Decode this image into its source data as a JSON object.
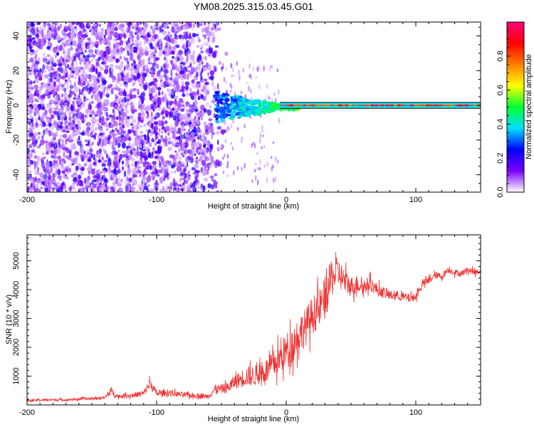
{
  "title": "YM08.2025.315.03.45.G01",
  "colors": {
    "snr_line": "#f03030",
    "frame": "#000000",
    "background": "#ffffff"
  },
  "chart_data": [
    {
      "type": "heatmap",
      "name": "spectrogram",
      "xlabel": "Height of straight line (km)",
      "ylabel": "Frequency (Hz)",
      "xlim": [
        -200,
        150
      ],
      "ylim": [
        -50,
        48
      ],
      "xticks": [
        -200,
        -100,
        0,
        100
      ],
      "xtick_labels": [
        "-200",
        "-100",
        "0",
        "100"
      ],
      "yticks": [
        -40,
        -20,
        0,
        20,
        40
      ],
      "ytick_labels": [
        "-40",
        "-20",
        "0",
        "20",
        "40"
      ],
      "features": {
        "noise_region_x": [
          -200,
          -45
        ],
        "convergence_x": [
          -55,
          0
        ],
        "carrier_frequency_hz": 0,
        "carrier_region_x": [
          0,
          150
        ]
      },
      "colorbar": {
        "label": "Normalized spectral amplitude",
        "range": [
          0,
          1
        ],
        "ticks": [
          0.0,
          0.2,
          0.4,
          0.6,
          0.8
        ],
        "tick_labels": [
          "0.0",
          "0.2",
          "0.4",
          "0.6",
          "0.8"
        ],
        "colormap": [
          "#ffffff",
          "#7b00ff",
          "#0000ff",
          "#00e0ff",
          "#00ff30",
          "#ffff00",
          "#ff8000",
          "#ff0000",
          "#ff0080"
        ]
      }
    },
    {
      "type": "line",
      "name": "snr",
      "xlabel": "Height of straight line (km)",
      "ylabel": "SNR (10 * v/v)",
      "xlim": [
        -200,
        150
      ],
      "ylim": [
        0,
        5900
      ],
      "xticks": [
        -200,
        -100,
        0,
        100
      ],
      "xtick_labels": [
        "-200",
        "-100",
        "0",
        "100"
      ],
      "yticks": [
        1000,
        2000,
        3000,
        4000,
        5000
      ],
      "ytick_labels": [
        "1000",
        "2000",
        "3000",
        "4000",
        "5000"
      ],
      "series": [
        {
          "name": "SNR",
          "x": [
            -200,
            -190,
            -180,
            -170,
            -160,
            -150,
            -140,
            -135,
            -130,
            -120,
            -110,
            -105,
            -100,
            -90,
            -80,
            -70,
            -60,
            -55,
            -50,
            -45,
            -40,
            -35,
            -30,
            -25,
            -20,
            -15,
            -10,
            -5,
            0,
            5,
            10,
            15,
            20,
            25,
            30,
            35,
            40,
            45,
            50,
            55,
            60,
            65,
            70,
            75,
            80,
            85,
            90,
            95,
            100,
            105,
            110,
            115,
            120,
            125,
            130,
            135,
            140,
            145,
            150
          ],
          "values": [
            150,
            170,
            180,
            180,
            200,
            220,
            250,
            480,
            300,
            320,
            400,
            750,
            400,
            420,
            350,
            320,
            300,
            550,
            550,
            600,
            800,
            900,
            1000,
            1000,
            1100,
            1200,
            1400,
            1600,
            1900,
            2100,
            2500,
            2700,
            3100,
            3300,
            3700,
            4400,
            4600,
            4300,
            4100,
            4200,
            4100,
            4200,
            4000,
            3900,
            3800,
            3800,
            3750,
            3700,
            3750,
            4200,
            4300,
            4500,
            4450,
            4700,
            4600,
            4550,
            4700,
            4600,
            4650
          ],
          "noise_amplitude": [
            70,
            80,
            80,
            80,
            90,
            90,
            100,
            250,
            120,
            150,
            200,
            350,
            200,
            200,
            180,
            160,
            160,
            300,
            300,
            350,
            450,
            550,
            650,
            650,
            700,
            800,
            900,
            1000,
            1100,
            1200,
            1200,
            1200,
            1200,
            1200,
            1400,
            1200,
            1000,
            800,
            650,
            600,
            500,
            450,
            400,
            350,
            320,
            300,
            300,
            280,
            280,
            250,
            250,
            230,
            220,
            220,
            200,
            200,
            200,
            200,
            200
          ]
        }
      ]
    }
  ]
}
